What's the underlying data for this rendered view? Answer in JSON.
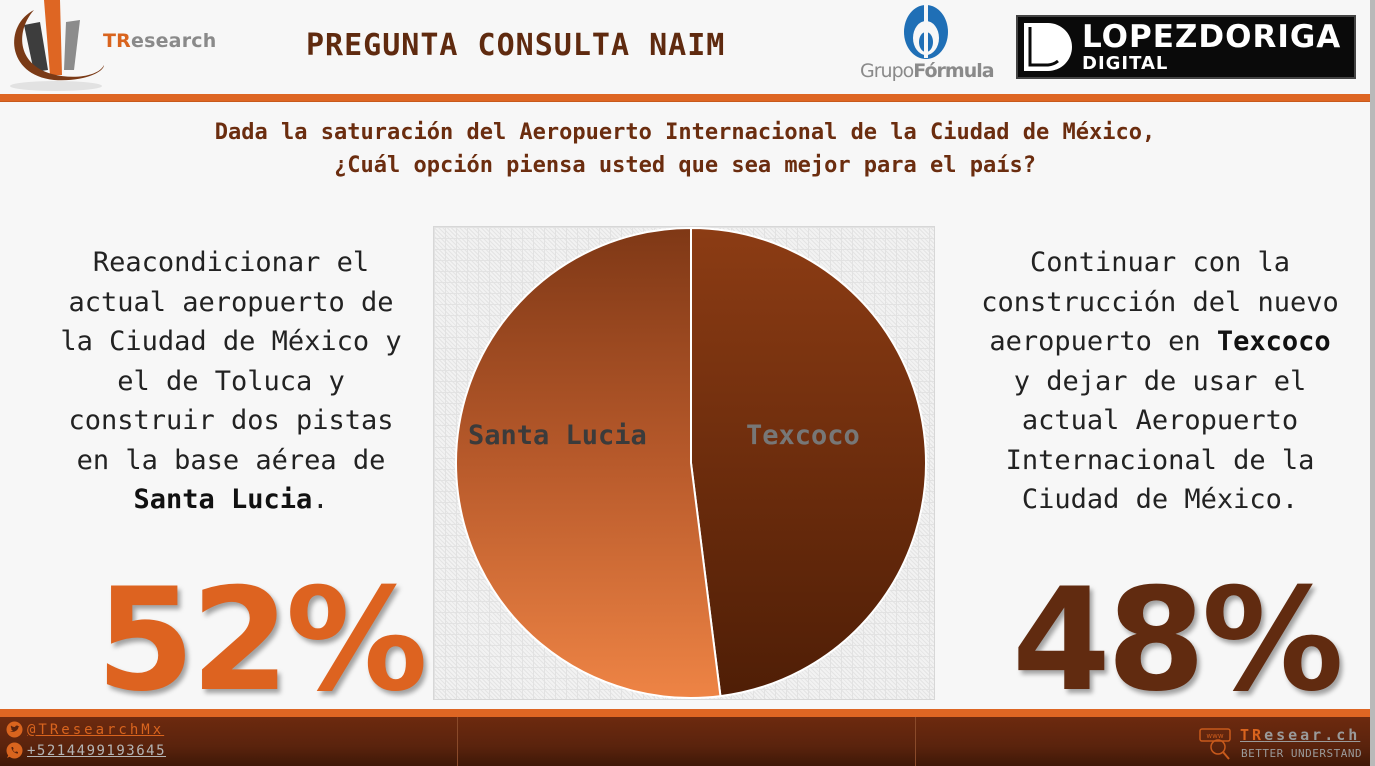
{
  "header": {
    "brand": {
      "prefix": "TR",
      "suffix": "esearch"
    },
    "title": "PREGUNTA CONSULTA NAIM",
    "partner_1": {
      "light": "Grupo",
      "bold": "Fórmula"
    },
    "partner_2": {
      "main": "LOPEZDORIGA",
      "sub": "DIGITAL"
    }
  },
  "question": {
    "line1": "Dada la saturación del Aeropuerto Internacional de la Ciudad de México,",
    "line2": "¿Cuál opción piensa usted que sea mejor para el país?"
  },
  "options": {
    "left": {
      "lines": [
        "Reacondicionar el",
        "actual aeropuerto de",
        "la Ciudad de México y",
        "el de Toluca y",
        "construir dos pistas",
        "en la base aérea de"
      ],
      "bold": "Santa Lucia",
      "tail": ".",
      "percent": "52%",
      "color": "#dd6320"
    },
    "right": {
      "lines_before": [
        "Continuar con la",
        "construcción del nuevo"
      ],
      "line3_prefix": "aeropuerto en ",
      "bold": "Texcoco",
      "lines_after": [
        "y dejar de usar el",
        "actual Aeropuerto",
        "Internacional de la",
        "Ciudad de México."
      ],
      "percent": "48%",
      "color": "#612b10"
    }
  },
  "chart_data": {
    "type": "pie",
    "title": "",
    "categories": [
      "Santa Lucia",
      "Texcoco"
    ],
    "values": [
      52,
      48
    ],
    "colors": [
      "#e07b3e",
      "#6a2a0c"
    ],
    "labels_inside": true,
    "start_angle_deg": 0,
    "direction": "clockwise from 12 o'clock (Texcoco first)"
  },
  "footer": {
    "twitter": "@TResearchMx",
    "phone": "+5214499193645",
    "web": {
      "prefix": "TR",
      "suffix": "esear.ch",
      "icon_text": "www"
    },
    "tagline": "BETTER UNDERSTAND"
  }
}
